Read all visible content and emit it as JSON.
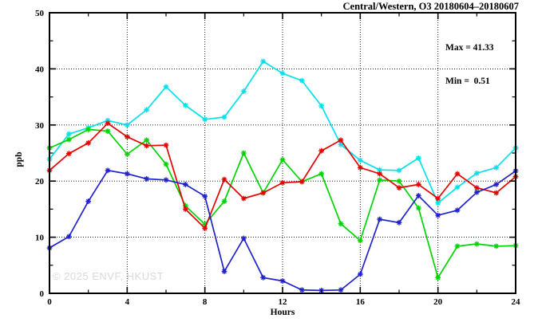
{
  "title": "Central/Western, O3 20180604–20180607",
  "annotation": {
    "max_line": "Max = 41.33",
    "min_line": "Min =  0.51"
  },
  "watermark": "© 2025 ENVF, HKUST",
  "chart_data": {
    "type": "line",
    "title": "Central/Western, O3 20180604–20180607",
    "xlabel": "Hours",
    "ylabel": "ppb",
    "xlim": [
      0,
      24
    ],
    "ylim": [
      0,
      50
    ],
    "xticks_major": [
      0,
      4,
      8,
      12,
      16,
      20,
      24
    ],
    "xticks_minor": [
      2,
      6,
      10,
      14,
      18,
      22
    ],
    "yticks_major": [
      0,
      10,
      20,
      30,
      40,
      50
    ],
    "yticks_minor": [
      5,
      15,
      25,
      35,
      45
    ],
    "grid_x": [
      4,
      8,
      12,
      16,
      20
    ],
    "grid_y": [
      10,
      20,
      30,
      40
    ],
    "legend": "none",
    "marker": "asterisk",
    "x": [
      0,
      1,
      2,
      3,
      4,
      5,
      6,
      7,
      8,
      9,
      10,
      11,
      12,
      13,
      14,
      15,
      16,
      17,
      18,
      19,
      20,
      21,
      22,
      23,
      24
    ],
    "series": [
      {
        "name": "cyan",
        "color": "#00e2ea",
        "values": [
          23.9,
          28.4,
          29.5,
          30.8,
          30.0,
          32.7,
          36.8,
          33.5,
          31.0,
          31.4,
          36.0,
          41.33,
          39.2,
          37.9,
          33.4,
          26.5,
          23.7,
          22.0,
          21.9,
          24.1,
          16.1,
          18.9,
          21.4,
          22.4,
          25.9
        ]
      },
      {
        "name": "green",
        "color": "#00d400",
        "values": [
          25.9,
          27.4,
          29.2,
          28.9,
          24.8,
          27.3,
          23.0,
          15.6,
          12.3,
          16.4,
          25.0,
          17.9,
          23.8,
          19.9,
          21.3,
          12.4,
          9.4,
          20.2,
          20.0,
          15.2,
          2.8,
          8.4,
          8.8,
          8.4,
          8.5
        ]
      },
      {
        "name": "red",
        "color": "#e60000",
        "values": [
          21.9,
          24.9,
          26.8,
          30.3,
          27.9,
          26.3,
          26.4,
          15.0,
          11.6,
          20.3,
          16.9,
          17.9,
          19.7,
          19.9,
          25.4,
          27.3,
          22.4,
          21.3,
          18.8,
          19.4,
          16.9,
          21.3,
          18.8,
          17.9,
          20.8
        ]
      },
      {
        "name": "blue",
        "color": "#2121cd",
        "values": [
          8.1,
          10.1,
          16.4,
          21.9,
          21.3,
          20.4,
          20.2,
          19.4,
          17.3,
          3.9,
          9.8,
          2.8,
          2.2,
          0.6,
          0.51,
          0.6,
          3.4,
          13.2,
          12.6,
          17.4,
          13.9,
          14.8,
          18.0,
          19.4,
          21.8
        ]
      }
    ],
    "stats": {
      "max": 41.33,
      "min": 0.51
    }
  }
}
